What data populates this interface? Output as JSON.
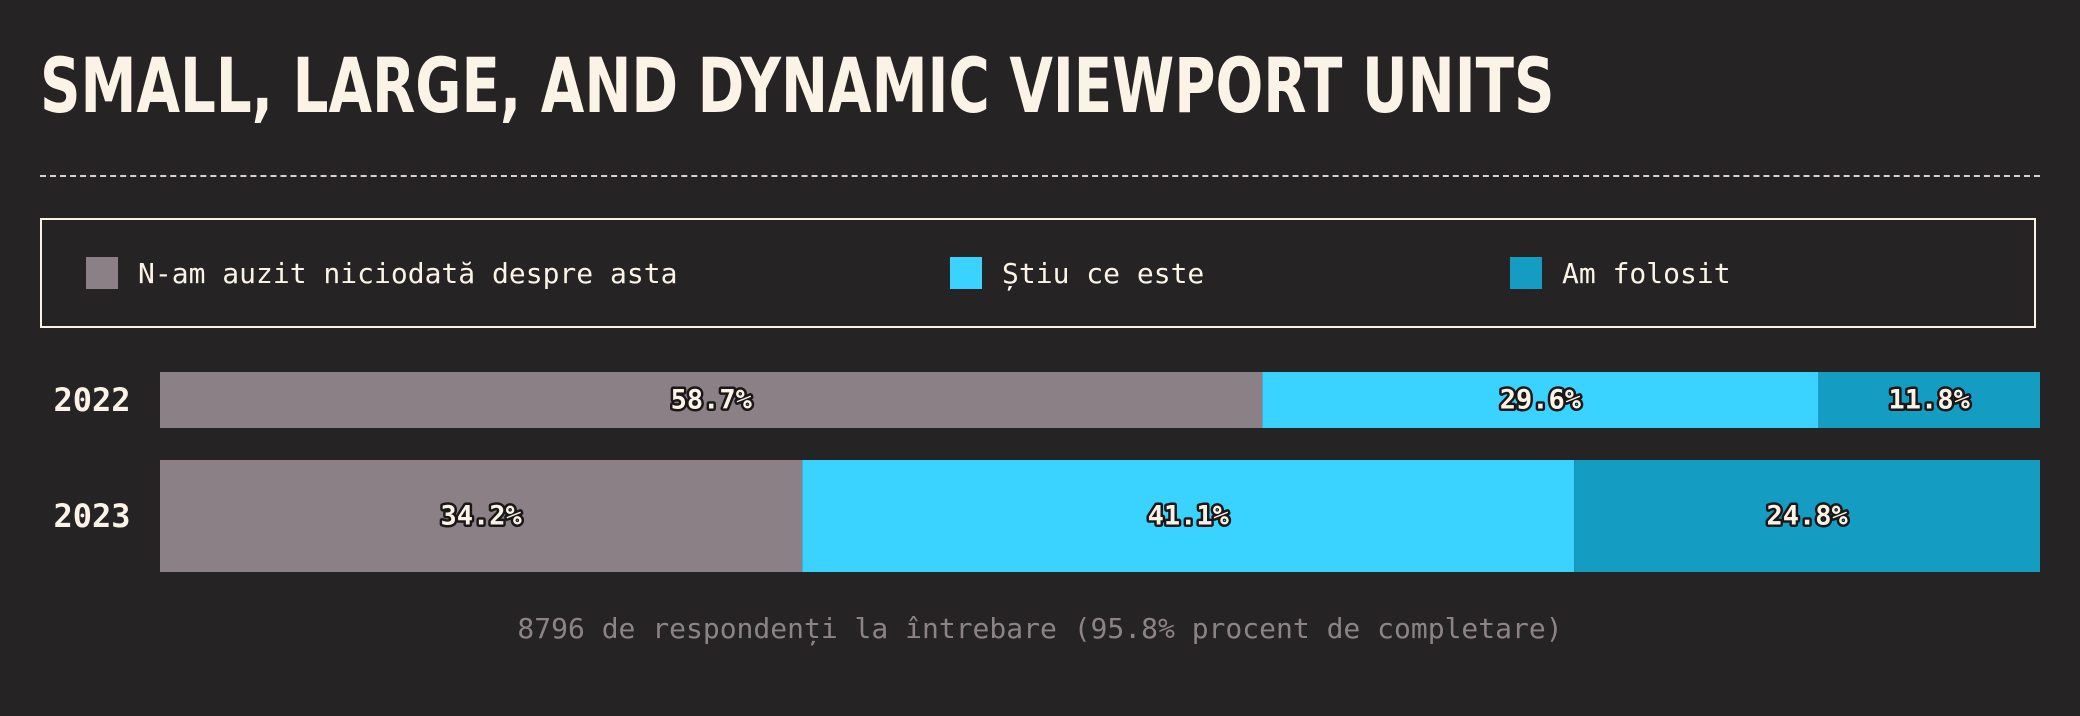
{
  "title": "SMALL, LARGE, AND DYNAMIC VIEWPORT UNITS",
  "legend": [
    {
      "label": "N-am auzit niciodată despre asta",
      "color": "#8b8085"
    },
    {
      "label": "Știu ce este",
      "color": "#3ad3ff"
    },
    {
      "label": "Am folosit",
      "color": "#149cc3"
    }
  ],
  "note": "8796 de respondenți la întrebare (95.8% procent de completare)",
  "chart_data": {
    "type": "bar",
    "orientation": "horizontal",
    "stacked": true,
    "categories": [
      "2022",
      "2023"
    ],
    "series": [
      {
        "name": "N-am auzit niciodată despre asta",
        "values": [
          58.7,
          34.2
        ],
        "labels": [
          "58.7%",
          "34.2%"
        ],
        "color": "#8b8085"
      },
      {
        "name": "Știu ce este",
        "values": [
          29.6,
          41.1
        ],
        "labels": [
          "29.6%",
          "41.1%"
        ],
        "color": "#3ad3ff"
      },
      {
        "name": "Am folosit",
        "values": [
          11.8,
          24.8
        ],
        "labels": [
          "11.8%",
          "24.8%"
        ],
        "color": "#149cc3"
      }
    ],
    "xlim": [
      0,
      100
    ]
  }
}
